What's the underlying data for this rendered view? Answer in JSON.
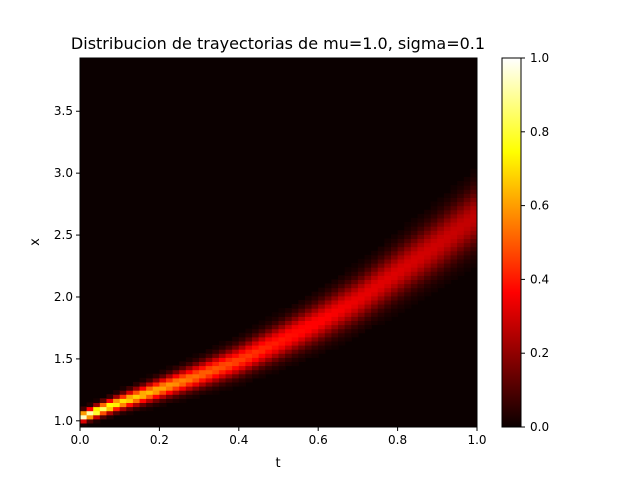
{
  "chart_data": {
    "type": "heatmap",
    "title": "Distribucion de trayectorias de mu=1.0, sigma=0.1",
    "xlabel": "t",
    "ylabel": "x",
    "xlim": [
      0.0,
      1.0
    ],
    "ylim": [
      0.95,
      3.93
    ],
    "xticks": [
      "0.0",
      "0.2",
      "0.4",
      "0.6",
      "0.8",
      "1.0"
    ],
    "yticks": [
      "1.0",
      "1.5",
      "2.0",
      "2.5",
      "3.0",
      "3.5"
    ],
    "colormap": "hot",
    "colorbar": {
      "ticks": [
        "0.0",
        "0.2",
        "0.4",
        "0.6",
        "0.8",
        "1.0"
      ],
      "range": [
        0.0,
        1.0
      ]
    },
    "model": {
      "mu": 1.0,
      "sigma": 0.1,
      "x0": 1.0,
      "description": "density of trajectories x(t) concentrated around x0*exp(mu*t), widening over t"
    },
    "ridge": {
      "t": [
        0.0,
        0.1,
        0.2,
        0.3,
        0.4,
        0.5,
        0.6,
        0.7,
        0.8,
        0.9,
        1.0
      ],
      "x_center": [
        1.03,
        1.15,
        1.26,
        1.37,
        1.49,
        1.64,
        1.8,
        1.98,
        2.2,
        2.42,
        2.66
      ],
      "peak_intensity": [
        1.0,
        0.72,
        0.62,
        0.52,
        0.46,
        0.4,
        0.36,
        0.32,
        0.3,
        0.28,
        0.26
      ]
    }
  }
}
